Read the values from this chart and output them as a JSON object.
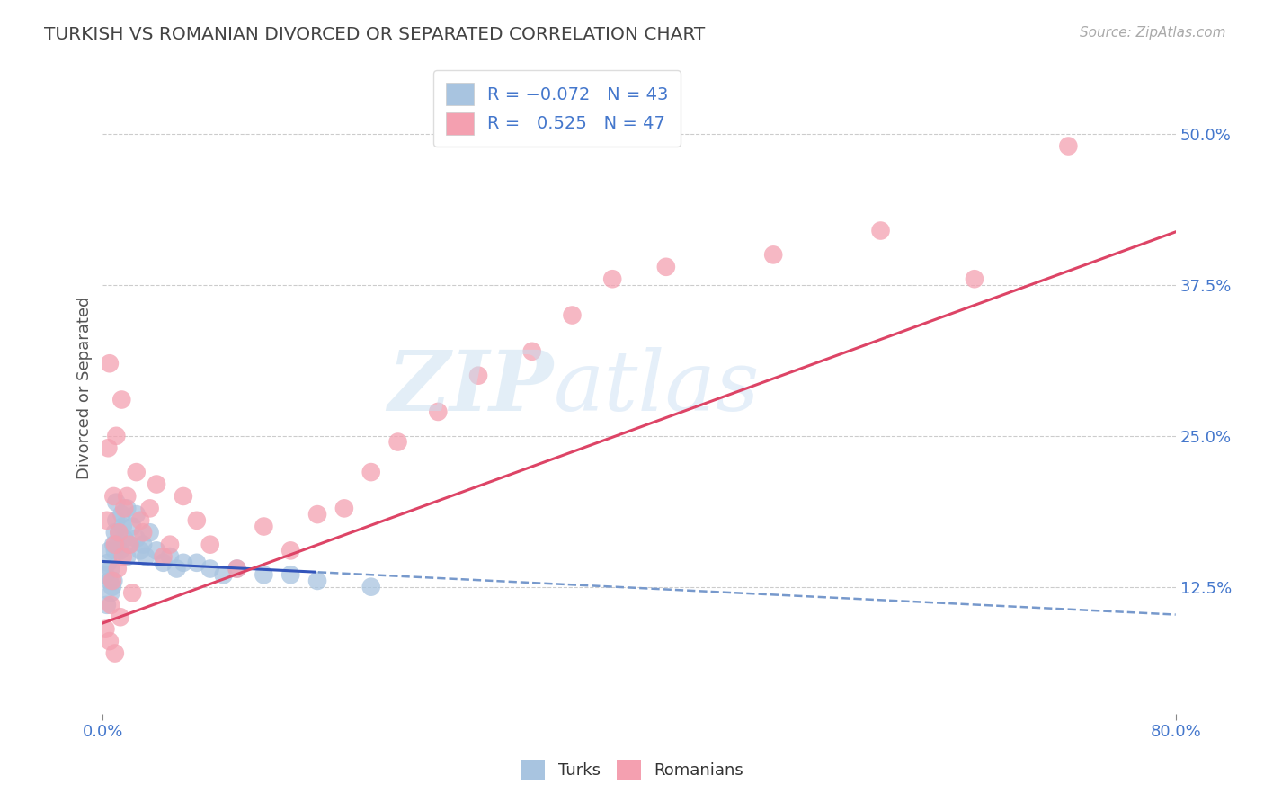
{
  "title": "TURKISH VS ROMANIAN DIVORCED OR SEPARATED CORRELATION CHART",
  "source": "Source: ZipAtlas.com",
  "ylabel": "Divorced or Separated",
  "y_ticks": [
    0.125,
    0.25,
    0.375,
    0.5
  ],
  "y_tick_labels": [
    "12.5%",
    "25.0%",
    "37.5%",
    "50.0%"
  ],
  "xlim": [
    0.0,
    0.8
  ],
  "ylim": [
    0.02,
    0.56
  ],
  "turkish_color": "#a8c4e0",
  "romanian_color": "#f4a0b0",
  "turkish_R": -0.072,
  "turkish_N": 43,
  "romanian_R": 0.525,
  "romanian_N": 47,
  "legend_label_1": "Turks",
  "legend_label_2": "Romanians",
  "turkish_points_x": [
    0.002,
    0.003,
    0.004,
    0.005,
    0.005,
    0.006,
    0.006,
    0.007,
    0.008,
    0.008,
    0.009,
    0.009,
    0.01,
    0.01,
    0.011,
    0.012,
    0.013,
    0.014,
    0.015,
    0.016,
    0.018,
    0.018,
    0.02,
    0.022,
    0.025,
    0.025,
    0.028,
    0.03,
    0.032,
    0.035,
    0.04,
    0.045,
    0.05,
    0.055,
    0.06,
    0.07,
    0.08,
    0.09,
    0.1,
    0.12,
    0.14,
    0.16,
    0.2
  ],
  "turkish_points_y": [
    0.135,
    0.11,
    0.145,
    0.13,
    0.155,
    0.12,
    0.14,
    0.125,
    0.16,
    0.13,
    0.155,
    0.17,
    0.18,
    0.195,
    0.16,
    0.17,
    0.155,
    0.185,
    0.175,
    0.165,
    0.15,
    0.19,
    0.16,
    0.175,
    0.165,
    0.185,
    0.155,
    0.16,
    0.15,
    0.17,
    0.155,
    0.145,
    0.15,
    0.14,
    0.145,
    0.145,
    0.14,
    0.135,
    0.14,
    0.135,
    0.135,
    0.13,
    0.125
  ],
  "romanian_points_x": [
    0.002,
    0.003,
    0.004,
    0.005,
    0.005,
    0.006,
    0.007,
    0.008,
    0.009,
    0.009,
    0.01,
    0.011,
    0.012,
    0.013,
    0.014,
    0.015,
    0.016,
    0.018,
    0.02,
    0.022,
    0.025,
    0.028,
    0.03,
    0.035,
    0.04,
    0.045,
    0.05,
    0.06,
    0.07,
    0.08,
    0.1,
    0.12,
    0.14,
    0.16,
    0.18,
    0.2,
    0.22,
    0.25,
    0.28,
    0.32,
    0.35,
    0.38,
    0.42,
    0.5,
    0.58,
    0.65,
    0.72
  ],
  "romanian_points_y": [
    0.09,
    0.18,
    0.24,
    0.08,
    0.31,
    0.11,
    0.13,
    0.2,
    0.16,
    0.07,
    0.25,
    0.14,
    0.17,
    0.1,
    0.28,
    0.15,
    0.19,
    0.2,
    0.16,
    0.12,
    0.22,
    0.18,
    0.17,
    0.19,
    0.21,
    0.15,
    0.16,
    0.2,
    0.18,
    0.16,
    0.14,
    0.175,
    0.155,
    0.185,
    0.19,
    0.22,
    0.245,
    0.27,
    0.3,
    0.32,
    0.35,
    0.38,
    0.39,
    0.4,
    0.42,
    0.38,
    0.49
  ],
  "background_color": "#ffffff",
  "grid_color": "#cccccc",
  "title_color": "#444444",
  "axis_label_color": "#555555",
  "tick_color": "#4477cc",
  "source_color": "#aaaaaa",
  "trend_blue_solid_color": "#3355bb",
  "trend_blue_dash_color": "#7799cc",
  "trend_pink_color": "#dd4466"
}
